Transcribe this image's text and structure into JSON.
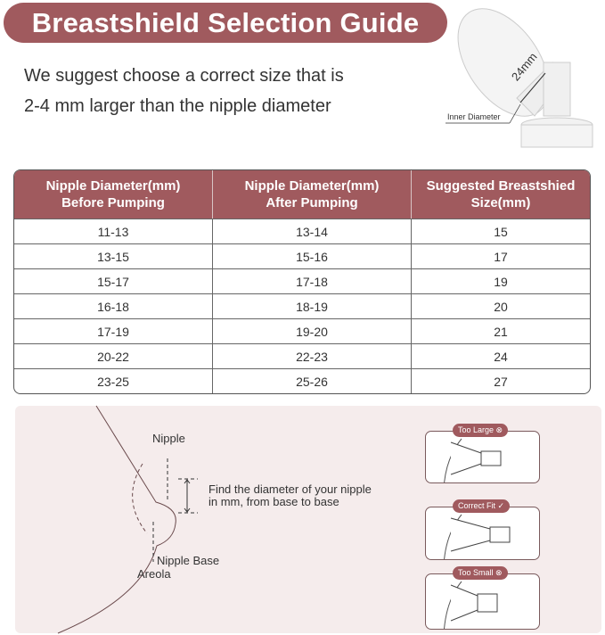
{
  "title": "Breastshield Selection Guide",
  "subtitle_lines": [
    "We suggest choose a correct size that is",
    "2-4 mm larger than the nipple diameter"
  ],
  "product_image": {
    "measure_label": "24mm",
    "inner_diameter_label": "Inner Diameter"
  },
  "table": {
    "headers": [
      [
        "Nipple Diameter(mm)",
        "Before Pumping"
      ],
      [
        "Nipple Diameter(mm)",
        "After Pumping"
      ],
      [
        "Suggested Breastshied",
        "Size(mm)"
      ]
    ],
    "rows": [
      [
        "11-13",
        "13-14",
        "15"
      ],
      [
        "13-15",
        "15-16",
        "17"
      ],
      [
        "15-17",
        "17-18",
        "19"
      ],
      [
        "16-18",
        "18-19",
        "20"
      ],
      [
        "17-19",
        "19-20",
        "21"
      ],
      [
        "20-22",
        "22-23",
        "24"
      ],
      [
        "23-25",
        "25-26",
        "27"
      ]
    ]
  },
  "diagram": {
    "nipple_label": "Nipple",
    "instruction_lines": [
      "Find the diameter of your nipple",
      "in mm, from base to base"
    ],
    "nipple_base_label": "Nipple Base",
    "areola_label": "Areola"
  },
  "fit_examples": [
    {
      "label": "Too Large",
      "icon": "x-circle-icon"
    },
    {
      "label": "Correct Fit",
      "icon": "check-circle-icon"
    },
    {
      "label": "Too Small",
      "icon": "x-circle-icon"
    }
  ],
  "colors": {
    "brand": "#a05a5e",
    "panel": "#f5ecec"
  }
}
